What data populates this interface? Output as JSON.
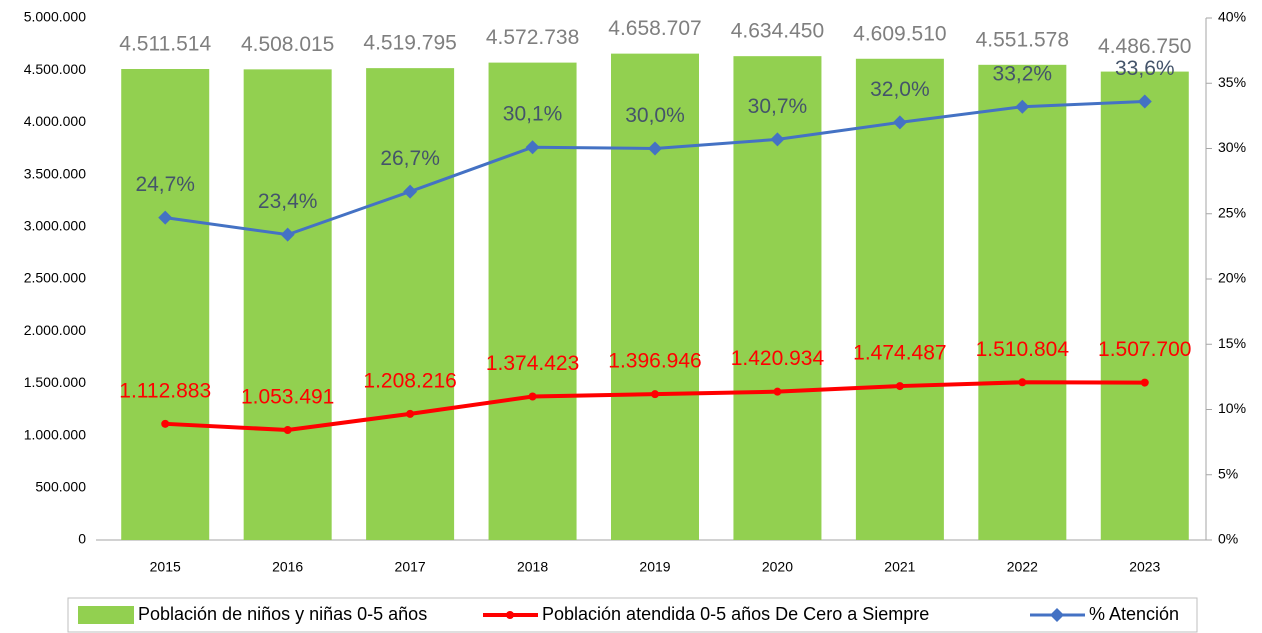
{
  "chart_data": {
    "type": "bar",
    "categories": [
      "2015",
      "2016",
      "2017",
      "2018",
      "2019",
      "2020",
      "2021",
      "2022",
      "2023"
    ],
    "series": [
      {
        "name": "Población de niños y niñas 0-5 años",
        "type": "bar",
        "color": "#92d050",
        "values": [
          4511514,
          4508015,
          4519795,
          4572738,
          4658707,
          4634450,
          4609510,
          4551578,
          4486750
        ],
        "value_labels": [
          "4.511.514",
          "4.508.015",
          "4.519.795",
          "4.572.738",
          "4.658.707",
          "4.634.450",
          "4.609.510",
          "4.551.578",
          "4.486.750"
        ],
        "label_color": "#7f7f7f"
      },
      {
        "name": "Población atendida 0-5 años De Cero a Siempre",
        "type": "line",
        "color": "#ff0000",
        "values": [
          1112883,
          1053491,
          1208216,
          1374423,
          1396946,
          1420934,
          1474487,
          1510804,
          1507700
        ],
        "value_labels": [
          "1.112.883",
          "1.053.491",
          "1.208.216",
          "1.374.423",
          "1.396.946",
          "1.420.934",
          "1.474.487",
          "1.510.804",
          "1.507.700"
        ],
        "label_color": "#ff0000"
      },
      {
        "name": "% Atención",
        "type": "line",
        "axis": "y2",
        "color": "#4472c4",
        "marker": "diamond",
        "values": [
          24.7,
          23.4,
          26.7,
          30.1,
          30.0,
          30.7,
          32.0,
          33.2,
          33.6
        ],
        "value_labels": [
          "24,7%",
          "23,4%",
          "26,7%",
          "30,1%",
          "30,0%",
          "30,7%",
          "32,0%",
          "33,2%",
          "33,6%"
        ],
        "label_color": "#44546a"
      }
    ],
    "ylim": [
      0,
      5000000
    ],
    "yticks": [
      0,
      {
        "value": 500000,
        "label": "500.000"
      },
      {
        "value": 1000000,
        "label": "1.000.000"
      },
      {
        "value": 1500000,
        "label": "1.500.000"
      },
      {
        "value": 2000000,
        "label": "2.000.000"
      },
      {
        "value": 2500000,
        "label": "2.500.000"
      },
      {
        "value": 3000000,
        "label": "3.000.000"
      },
      {
        "value": 3500000,
        "label": "3.500.000"
      },
      {
        "value": 4000000,
        "label": "4.000.000"
      },
      {
        "value": 4500000,
        "label": "4.500.000"
      },
      {
        "value": 5000000,
        "label": "5.000.000"
      }
    ],
    "y2lim": [
      0,
      40
    ],
    "y2ticks": [
      {
        "value": 0,
        "label": "0%"
      },
      {
        "value": 5,
        "label": "5%"
      },
      {
        "value": 10,
        "label": "10%"
      },
      {
        "value": 15,
        "label": "15%"
      },
      {
        "value": 20,
        "label": "20%"
      },
      {
        "value": 25,
        "label": "25%"
      },
      {
        "value": 30,
        "label": "30%"
      },
      {
        "value": 35,
        "label": "35%"
      },
      {
        "value": 40,
        "label": "40%"
      }
    ],
    "legend": "bottom"
  }
}
